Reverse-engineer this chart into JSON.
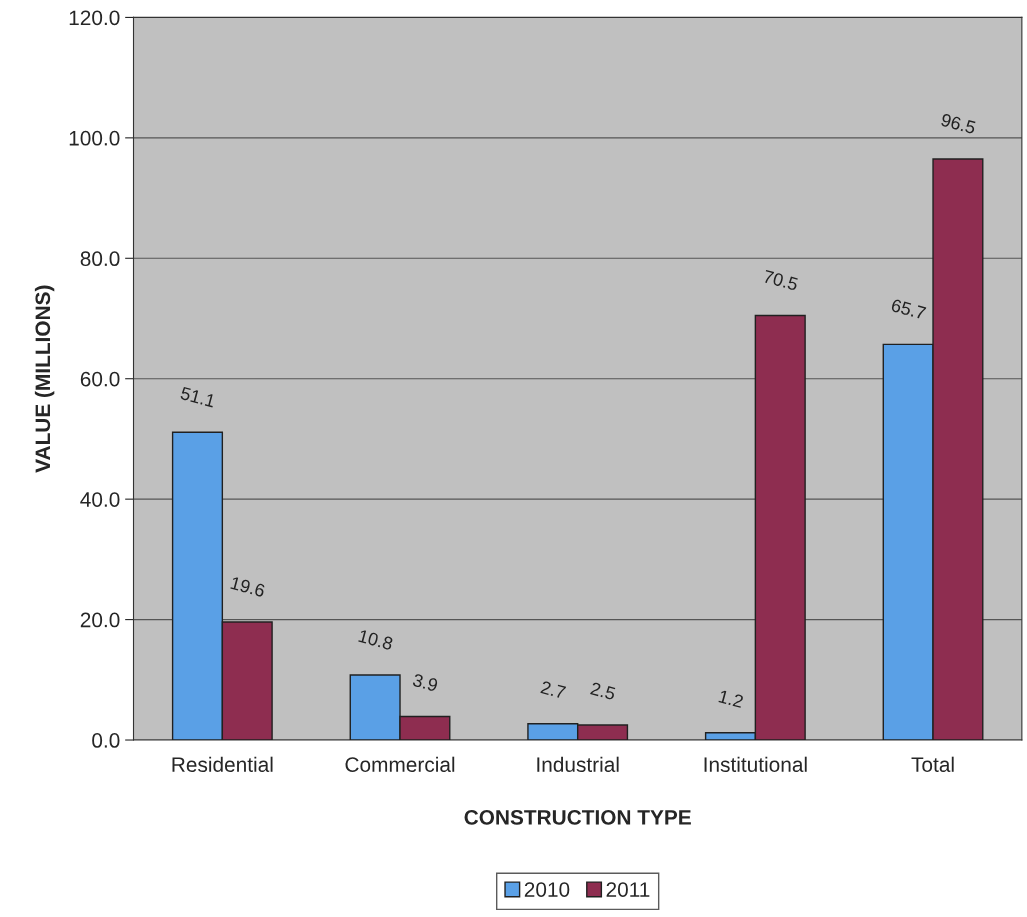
{
  "chart_data": {
    "type": "bar",
    "xlabel": "CONSTRUCTION TYPE",
    "ylabel": "VALUE (MILLIONS)",
    "categories": [
      "Residential",
      "Commercial",
      "Industrial",
      "Institutional",
      "Total"
    ],
    "series": [
      {
        "name": "2010",
        "color": "#5aa0e6",
        "values": [
          51.1,
          10.8,
          2.7,
          1.2,
          65.7
        ]
      },
      {
        "name": "2011",
        "color": "#8e2d50",
        "values": [
          19.6,
          3.9,
          2.5,
          70.5,
          96.5
        ]
      }
    ],
    "ylim": [
      0,
      120
    ],
    "yticks": [
      {
        "value": 0,
        "label": "0.0"
      },
      {
        "value": 20,
        "label": "20.0"
      },
      {
        "value": 40,
        "label": "40.0"
      },
      {
        "value": 60,
        "label": "60.0"
      },
      {
        "value": 80,
        "label": "80.0"
      },
      {
        "value": 100,
        "label": "100.0"
      },
      {
        "value": 120,
        "label": "120.0"
      }
    ],
    "grid": "y",
    "legend": "bottom",
    "data_labels": true
  }
}
